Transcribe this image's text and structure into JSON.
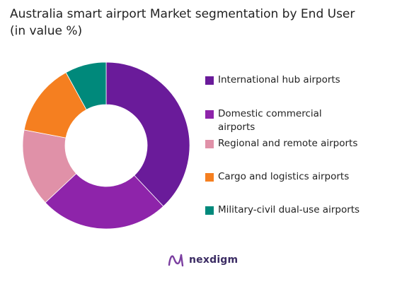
{
  "title": {
    "line1": "Australia smart airport Market segmentation by End User",
    "line2": "(in value %)"
  },
  "chart_data": {
    "type": "pie",
    "style": "donut",
    "title": "Australia smart airport Market segmentation by End User (in value %)",
    "legend_position": "right",
    "series": [
      {
        "name": "International hub airports",
        "value": 38,
        "color": "#6a1b9a"
      },
      {
        "name": "Domestic commercial airports",
        "value": 25,
        "color": "#8e24aa"
      },
      {
        "name": "Regional and remote airports",
        "value": 15,
        "color": "#e091a8"
      },
      {
        "name": "Cargo and logistics airports",
        "value": 14,
        "color": "#f57f20"
      },
      {
        "name": "Military-civil dual-use airports",
        "value": 8,
        "color": "#00897b"
      }
    ]
  },
  "brand": {
    "name": "nexdigm",
    "color": "#7b3fa0"
  }
}
